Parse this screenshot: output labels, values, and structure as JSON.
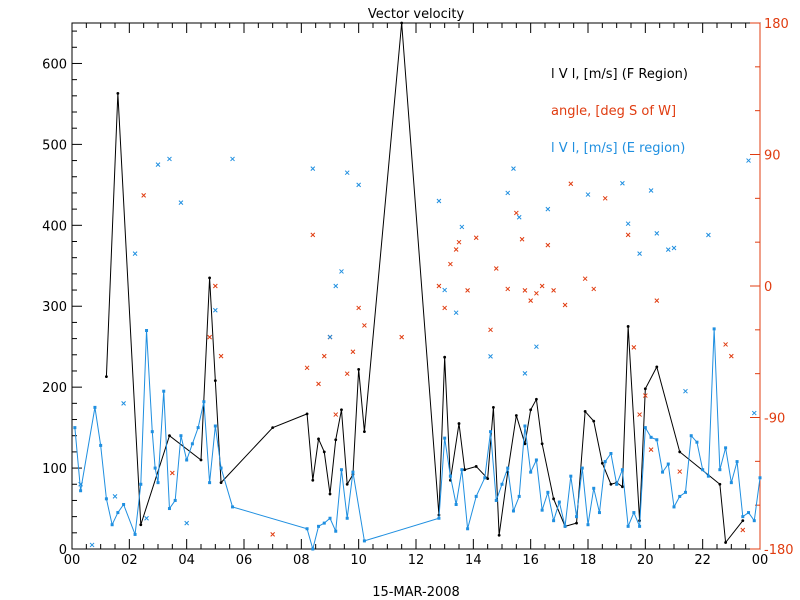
{
  "chart_data": {
    "type": "line",
    "title": "Vector velocity",
    "xlabel": "15-MAR-2008",
    "x_range": [
      0,
      24
    ],
    "x_tick_labels": [
      "00",
      "02",
      "04",
      "06",
      "08",
      "10",
      "12",
      "14",
      "16",
      "18",
      "20",
      "22",
      "00"
    ],
    "ylim_left": [
      0,
      650
    ],
    "y_tick_labels_left": [
      "0",
      "100",
      "200",
      "300",
      "400",
      "500",
      "600"
    ],
    "ylim_right": [
      -180,
      180
    ],
    "y_tick_labels_right": [
      "-180",
      "-90",
      "0",
      "90",
      "180"
    ],
    "grid": false,
    "legend_position": "top-right",
    "legend": [
      "l V l, [m/s] (F Region)",
      "angle, [deg S of W]",
      "l V l, [m/s] (E region)"
    ],
    "colors": {
      "f_region": "#000000",
      "angle": "#e03c10",
      "e_region": "#1f8fe0",
      "right_axis": "#e03c10"
    },
    "series": [
      {
        "name": "l V l, [m/s] (F Region)",
        "axis": "left",
        "style": "line-dots",
        "points": [
          [
            1.2,
            213
          ],
          [
            1.6,
            563
          ],
          [
            2.4,
            30
          ],
          [
            3.4,
            140
          ],
          [
            4.5,
            110
          ],
          [
            4.8,
            335
          ],
          [
            5.0,
            208
          ],
          [
            5.2,
            82
          ],
          [
            7.0,
            150
          ],
          [
            8.2,
            167
          ],
          [
            8.4,
            85
          ],
          [
            8.6,
            136
          ],
          [
            8.8,
            120
          ],
          [
            9.0,
            68
          ],
          [
            9.2,
            135
          ],
          [
            9.4,
            172
          ],
          [
            9.6,
            80
          ],
          [
            9.8,
            92
          ],
          [
            10.0,
            222
          ],
          [
            10.2,
            145
          ],
          [
            11.5,
            650
          ],
          [
            12.8,
            42
          ],
          [
            13.0,
            237
          ],
          [
            13.2,
            85
          ],
          [
            13.5,
            155
          ],
          [
            13.7,
            98
          ],
          [
            14.1,
            102
          ],
          [
            14.5,
            87
          ],
          [
            14.7,
            175
          ],
          [
            14.9,
            17
          ],
          [
            15.2,
            95
          ],
          [
            15.5,
            165
          ],
          [
            15.8,
            130
          ],
          [
            16.0,
            172
          ],
          [
            16.2,
            185
          ],
          [
            16.4,
            130
          ],
          [
            16.8,
            62
          ],
          [
            17.2,
            28
          ],
          [
            17.6,
            32
          ],
          [
            17.9,
            170
          ],
          [
            18.2,
            158
          ],
          [
            18.5,
            106
          ],
          [
            18.8,
            80
          ],
          [
            19.0,
            82
          ],
          [
            19.2,
            77
          ],
          [
            19.4,
            275
          ],
          [
            19.8,
            35
          ],
          [
            20.0,
            198
          ],
          [
            20.4,
            225
          ],
          [
            21.2,
            120
          ],
          [
            22.6,
            80
          ],
          [
            22.8,
            8
          ],
          [
            23.4,
            35
          ]
        ]
      },
      {
        "name": "angle, [deg S of W]",
        "axis": "right",
        "style": "markers",
        "points": [
          [
            2.5,
            62
          ],
          [
            3.5,
            -128
          ],
          [
            4.8,
            -35
          ],
          [
            5.0,
            0
          ],
          [
            5.2,
            -48
          ],
          [
            7.0,
            -170
          ],
          [
            8.2,
            -56
          ],
          [
            8.4,
            35
          ],
          [
            8.6,
            -67
          ],
          [
            8.8,
            -48
          ],
          [
            9.0,
            -35
          ],
          [
            9.2,
            -88
          ],
          [
            9.6,
            -60
          ],
          [
            9.8,
            -45
          ],
          [
            10.0,
            -15
          ],
          [
            10.2,
            -27
          ],
          [
            11.5,
            -35
          ],
          [
            12.8,
            0
          ],
          [
            13.0,
            -15
          ],
          [
            13.2,
            15
          ],
          [
            13.4,
            25
          ],
          [
            13.5,
            30
          ],
          [
            13.8,
            -3
          ],
          [
            14.1,
            33
          ],
          [
            14.6,
            -30
          ],
          [
            14.8,
            12
          ],
          [
            15.2,
            -2
          ],
          [
            15.5,
            50
          ],
          [
            15.7,
            32
          ],
          [
            15.8,
            -3
          ],
          [
            16.0,
            -10
          ],
          [
            16.2,
            -5
          ],
          [
            16.4,
            0
          ],
          [
            16.6,
            28
          ],
          [
            16.8,
            -3
          ],
          [
            17.2,
            -13
          ],
          [
            17.4,
            70
          ],
          [
            17.9,
            5
          ],
          [
            18.2,
            -2
          ],
          [
            18.6,
            60
          ],
          [
            19.4,
            35
          ],
          [
            19.6,
            -42
          ],
          [
            19.8,
            -88
          ],
          [
            20.0,
            -75
          ],
          [
            20.2,
            -112
          ],
          [
            20.4,
            -10
          ],
          [
            21.2,
            -127
          ],
          [
            22.8,
            -40
          ],
          [
            23.0,
            -48
          ],
          [
            23.4,
            -167
          ]
        ]
      },
      {
        "name": "l V l, [m/s] (E region)",
        "axis": "left",
        "style": "line-squares",
        "points": [
          [
            0.1,
            150
          ],
          [
            0.3,
            72
          ],
          [
            0.8,
            175
          ],
          [
            1.0,
            128
          ],
          [
            1.2,
            62
          ],
          [
            1.4,
            30
          ],
          [
            1.6,
            45
          ],
          [
            1.8,
            55
          ],
          [
            2.2,
            18
          ],
          [
            2.4,
            80
          ],
          [
            2.6,
            270
          ],
          [
            2.8,
            145
          ],
          [
            2.9,
            100
          ],
          [
            3.0,
            82
          ],
          [
            3.2,
            195
          ],
          [
            3.4,
            50
          ],
          [
            3.6,
            60
          ],
          [
            3.8,
            140
          ],
          [
            4.0,
            110
          ],
          [
            4.2,
            130
          ],
          [
            4.4,
            150
          ],
          [
            4.6,
            182
          ],
          [
            4.8,
            82
          ],
          [
            5.0,
            152
          ],
          [
            5.2,
            100
          ],
          [
            5.6,
            52
          ],
          [
            8.2,
            25
          ],
          [
            8.4,
            0
          ],
          [
            8.6,
            28
          ],
          [
            8.8,
            32
          ],
          [
            9.0,
            38
          ],
          [
            9.2,
            22
          ],
          [
            9.4,
            98
          ],
          [
            9.6,
            38
          ],
          [
            9.8,
            95
          ],
          [
            10.2,
            10
          ],
          [
            12.8,
            38
          ],
          [
            13.0,
            137
          ],
          [
            13.2,
            90
          ],
          [
            13.4,
            55
          ],
          [
            13.6,
            98
          ],
          [
            13.8,
            25
          ],
          [
            14.1,
            65
          ],
          [
            14.4,
            88
          ],
          [
            14.6,
            145
          ],
          [
            14.8,
            60
          ],
          [
            15.0,
            80
          ],
          [
            15.2,
            100
          ],
          [
            15.4,
            47
          ],
          [
            15.6,
            65
          ],
          [
            15.8,
            152
          ],
          [
            16.0,
            95
          ],
          [
            16.2,
            110
          ],
          [
            16.4,
            48
          ],
          [
            16.6,
            70
          ],
          [
            16.8,
            35
          ],
          [
            17.0,
            58
          ],
          [
            17.2,
            28
          ],
          [
            17.4,
            90
          ],
          [
            17.6,
            40
          ],
          [
            17.8,
            100
          ],
          [
            18.0,
            30
          ],
          [
            18.2,
            75
          ],
          [
            18.4,
            45
          ],
          [
            18.6,
            108
          ],
          [
            18.8,
            118
          ],
          [
            19.0,
            80
          ],
          [
            19.2,
            98
          ],
          [
            19.4,
            28
          ],
          [
            19.6,
            45
          ],
          [
            19.8,
            28
          ],
          [
            20.0,
            150
          ],
          [
            20.2,
            138
          ],
          [
            20.4,
            135
          ],
          [
            20.6,
            95
          ],
          [
            20.8,
            105
          ],
          [
            21.0,
            52
          ],
          [
            21.2,
            65
          ],
          [
            21.4,
            70
          ],
          [
            21.6,
            140
          ],
          [
            21.8,
            132
          ],
          [
            22.0,
            98
          ],
          [
            22.2,
            90
          ],
          [
            22.4,
            272
          ],
          [
            22.6,
            98
          ],
          [
            22.8,
            125
          ],
          [
            23.0,
            82
          ],
          [
            23.2,
            108
          ],
          [
            23.4,
            40
          ],
          [
            23.6,
            45
          ],
          [
            23.8,
            35
          ],
          [
            24.0,
            88
          ]
        ]
      },
      {
        "name": "",
        "axis": "left",
        "style": "markers",
        "color_key": "e_region",
        "points": [
          [
            0.3,
            80
          ],
          [
            0.7,
            5
          ],
          [
            1.5,
            65
          ],
          [
            1.8,
            180
          ],
          [
            2.2,
            365
          ],
          [
            2.6,
            38
          ],
          [
            3.0,
            475
          ],
          [
            3.4,
            482
          ],
          [
            3.8,
            428
          ],
          [
            4.0,
            32
          ],
          [
            5.0,
            295
          ],
          [
            5.6,
            482
          ],
          [
            8.4,
            470
          ],
          [
            9.0,
            262
          ],
          [
            9.2,
            325
          ],
          [
            9.4,
            343
          ],
          [
            9.6,
            465
          ],
          [
            10.0,
            450
          ],
          [
            12.8,
            430
          ],
          [
            13.0,
            320
          ],
          [
            13.4,
            292
          ],
          [
            13.6,
            398
          ],
          [
            14.6,
            238
          ],
          [
            15.2,
            440
          ],
          [
            15.4,
            470
          ],
          [
            15.6,
            410
          ],
          [
            15.8,
            217
          ],
          [
            16.2,
            250
          ],
          [
            16.6,
            420
          ],
          [
            18.0,
            438
          ],
          [
            19.2,
            452
          ],
          [
            19.4,
            402
          ],
          [
            19.8,
            365
          ],
          [
            20.2,
            443
          ],
          [
            20.4,
            390
          ],
          [
            20.8,
            370
          ],
          [
            21.0,
            372
          ],
          [
            21.4,
            195
          ],
          [
            22.2,
            388
          ],
          [
            23.6,
            480
          ],
          [
            23.8,
            168
          ]
        ]
      }
    ]
  }
}
